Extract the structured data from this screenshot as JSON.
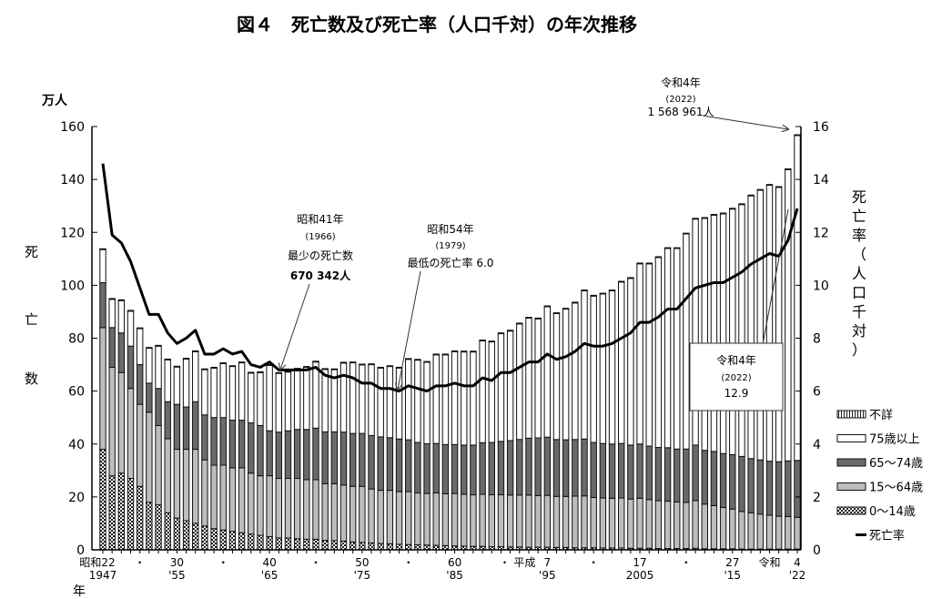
{
  "chart_data": {
    "type": "bar",
    "title": "図４　死亡数及び死亡率（人口千対）の年次推移",
    "left_unit": "万人",
    "ylabel": "死亡数",
    "ylabel_chars": [
      "死",
      "亡",
      "数"
    ],
    "y2label": "死亡率（人口千対）",
    "y2label_chars": [
      "死",
      "亡",
      "率",
      "（",
      "人",
      "口",
      "千",
      "対",
      "）"
    ],
    "xlabel": "年",
    "ylim": [
      0,
      160
    ],
    "y2lim": [
      0,
      16
    ],
    "yticks": [
      "0",
      "20",
      "40",
      "60",
      "80",
      "100",
      "120",
      "140",
      "160"
    ],
    "y2ticks": [
      "0",
      "2",
      "4",
      "6",
      "8",
      "10",
      "12",
      "14",
      "16"
    ],
    "x_start_year": 1947,
    "x_end_year": 2022,
    "xtick_labels": [
      {
        "year": 1947,
        "era": "昭和22",
        "west": "1947"
      },
      {
        "year": 1951,
        "era": "・",
        "west": ""
      },
      {
        "year": 1955,
        "era": "30",
        "west": "'55"
      },
      {
        "year": 1960,
        "era": "・",
        "west": ""
      },
      {
        "year": 1965,
        "era": "40",
        "west": "'65"
      },
      {
        "year": 1970,
        "era": "・",
        "west": ""
      },
      {
        "year": 1975,
        "era": "50",
        "west": "'75"
      },
      {
        "year": 1980,
        "era": "・",
        "west": ""
      },
      {
        "year": 1985,
        "era": "60",
        "west": "'85"
      },
      {
        "year": 1990,
        "era": "・ 平成",
        "west": ""
      },
      {
        "year": 1995,
        "era": "7",
        "west": "'95"
      },
      {
        "year": 2000,
        "era": "・",
        "west": ""
      },
      {
        "year": 2005,
        "era": "17",
        "west": "2005"
      },
      {
        "year": 2010,
        "era": "・",
        "west": ""
      },
      {
        "year": 2015,
        "era": "27",
        "west": "'15"
      },
      {
        "year": 2019,
        "era": "令和",
        "west": ""
      },
      {
        "year": 2022,
        "era": "4",
        "west": "'22"
      }
    ],
    "legend": [
      {
        "key": "unknown",
        "label": "不詳"
      },
      {
        "key": "age75",
        "label": "75歳以上"
      },
      {
        "key": "age65_74",
        "label": "65～74歳"
      },
      {
        "key": "age15_64",
        "label": "15～64歳"
      },
      {
        "key": "age0_14",
        "label": "0～14歳"
      },
      {
        "key": "rate",
        "label": "死亡率"
      }
    ],
    "legend_placement": "bottom-right",
    "total_deaths": [
      113.8,
      95.0,
      94.5,
      90.5,
      83.9,
      76.5,
      77.3,
      72.1,
      69.4,
      72.4,
      75.2,
      68.4,
      69.0,
      70.7,
      69.6,
      71.0,
      67.1,
      67.3,
      70.0,
      67.0,
      67.5,
      68.6,
      69.3,
      71.3,
      68.5,
      68.4,
      70.9,
      71.0,
      70.2,
      70.3,
      69.0,
      69.6,
      69.0,
      72.3,
      72.0,
      71.2,
      74.0,
      74.0,
      75.2,
      75.1,
      75.1,
      79.3,
      78.9,
      82.0,
      83.0,
      85.7,
      87.9,
      87.6,
      92.2,
      89.6,
      91.3,
      93.6,
      98.2,
      96.2,
      97.0,
      98.2,
      101.5,
      102.9,
      108.4,
      108.4,
      110.8,
      114.2,
      114.2,
      119.7,
      125.3,
      125.6,
      126.8,
      127.3,
      129.1,
      130.8,
      134.1,
      136.2,
      138.1,
      137.3,
      144.0,
      156.9
    ],
    "series": [
      {
        "name": "0～14歳",
        "values": [
          38,
          28,
          29,
          27,
          24,
          18,
          17,
          14,
          12,
          11,
          10,
          9,
          8,
          7.5,
          7,
          6.5,
          6,
          5.5,
          5,
          4.5,
          4.5,
          4.2,
          4,
          4,
          3.6,
          3.5,
          3.3,
          3,
          2.8,
          2.6,
          2.4,
          2.3,
          2.1,
          2,
          1.9,
          1.8,
          1.7,
          1.6,
          1.5,
          1.4,
          1.3,
          1.3,
          1.2,
          1.2,
          1.1,
          1.1,
          1.0,
          1.0,
          1.0,
          0.9,
          0.9,
          0.8,
          0.8,
          0.8,
          0.7,
          0.7,
          0.7,
          0.6,
          0.6,
          0.6,
          0.5,
          0.5,
          0.5,
          0.5,
          0.6,
          0.4,
          0.4,
          0.4,
          0.4,
          0.3,
          0.3,
          0.3,
          0.3,
          0.3,
          0.3,
          0.3
        ]
      },
      {
        "name": "15～64歳",
        "values": [
          46,
          41,
          38,
          34,
          31,
          34,
          30,
          28,
          26,
          27,
          28,
          25,
          24,
          24.5,
          24,
          24.5,
          23,
          22.5,
          23,
          22.5,
          22.5,
          22.8,
          22.5,
          22.5,
          21.4,
          21.5,
          21.2,
          21,
          21.2,
          20.4,
          20.1,
          20.2,
          19.9,
          20,
          19.6,
          19.5,
          19.8,
          19.6,
          19.8,
          19.6,
          19.5,
          19.7,
          19.6,
          19.6,
          19.6,
          19.6,
          19.7,
          19.5,
          19.6,
          19.3,
          19.3,
          19.5,
          19.6,
          19.0,
          18.9,
          18.8,
          18.9,
          18.6,
          18.9,
          18.4,
          18.1,
          17.9,
          17.6,
          17.4,
          18.0,
          16.9,
          16.3,
          15.6,
          15.0,
          14.2,
          13.7,
          13.2,
          12.8,
          12.4,
          12.3,
          12.0
        ]
      },
      {
        "name": "65～74歳",
        "values": [
          17,
          15,
          15,
          16,
          15,
          11,
          14,
          14,
          17,
          16,
          18,
          17,
          18,
          18,
          18,
          18,
          19,
          19,
          17,
          17.5,
          18,
          18.5,
          19,
          19.5,
          19.6,
          19.6,
          20,
          20,
          20,
          20.2,
          20.2,
          19.9,
          19.9,
          19.6,
          19.1,
          18.8,
          18.7,
          18.6,
          18.5,
          18.6,
          18.8,
          19.5,
          19.8,
          20.2,
          20.6,
          21,
          21.5,
          21.8,
          22,
          21.5,
          21.4,
          21.4,
          21.5,
          20.8,
          20.6,
          20.5,
          20.6,
          20.4,
          20.5,
          20.2,
          20.1,
          20.2,
          20,
          20.2,
          21,
          20.3,
          20.5,
          20.4,
          20.6,
          20.8,
          20.5,
          20.5,
          20.4,
          20.6,
          21,
          21.5
        ]
      },
      {
        "name": "死亡率",
        "axis": "right",
        "values": [
          14.6,
          11.9,
          11.6,
          10.9,
          9.9,
          8.9,
          8.9,
          8.2,
          7.8,
          8.0,
          8.3,
          7.4,
          7.4,
          7.6,
          7.4,
          7.5,
          7.0,
          6.9,
          7.1,
          6.8,
          6.8,
          6.8,
          6.8,
          6.9,
          6.6,
          6.5,
          6.6,
          6.5,
          6.3,
          6.3,
          6.1,
          6.1,
          6.0,
          6.2,
          6.1,
          6.0,
          6.2,
          6.2,
          6.3,
          6.2,
          6.2,
          6.5,
          6.4,
          6.7,
          6.7,
          6.9,
          7.1,
          7.1,
          7.4,
          7.2,
          7.3,
          7.5,
          7.8,
          7.7,
          7.7,
          7.8,
          8.0,
          8.2,
          8.6,
          8.6,
          8.8,
          9.1,
          9.1,
          9.5,
          9.9,
          10.0,
          10.1,
          10.1,
          10.3,
          10.5,
          10.8,
          11.0,
          11.2,
          11.1,
          11.7,
          12.9
        ]
      }
    ],
    "annotations": {
      "max_deaths": {
        "year": 2022,
        "lines": [
          "令和4年",
          "(2022)",
          "1 568 961人"
        ]
      },
      "min_deaths": {
        "year": 1966,
        "lines": [
          "昭和41年",
          "(1966)",
          "最少の死亡数",
          "670 342人"
        ]
      },
      "min_rate": {
        "year": 1979,
        "lines": [
          "昭和54年",
          "(1979)",
          "最低の死亡率 6.0"
        ]
      },
      "latest_rate": {
        "year": 2022,
        "lines": [
          "令和4年",
          "(2022)",
          "12.9"
        ]
      }
    }
  }
}
